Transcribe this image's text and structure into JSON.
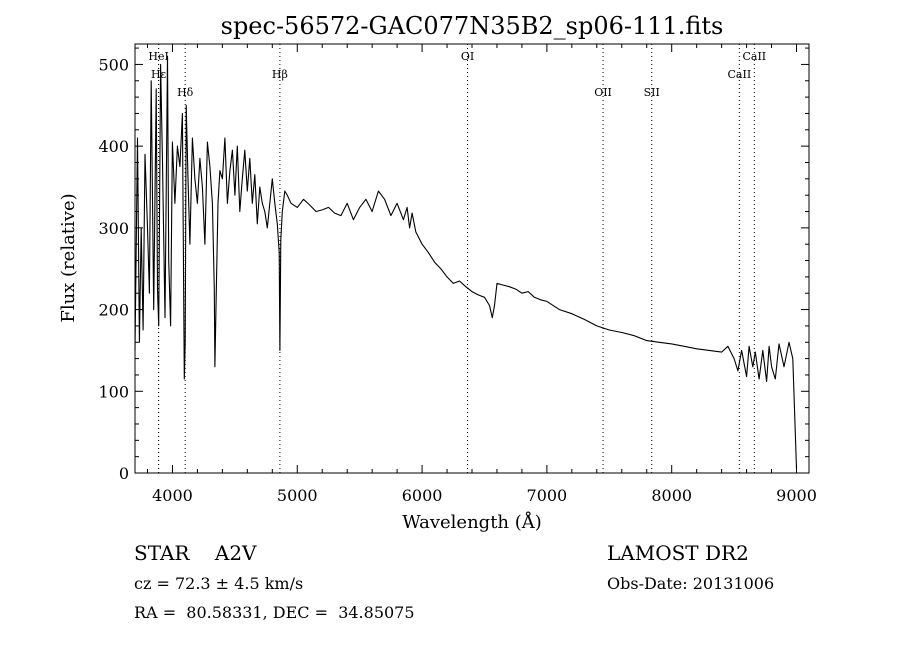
{
  "chart_data": {
    "type": "line",
    "title": "spec-56572-GAC077N35B2_sp06-111.fits",
    "xlabel": "Wavelength (Å)",
    "ylabel": "Flux (relative)",
    "xlim": [
      3700,
      9100
    ],
    "ylim": [
      0,
      525
    ],
    "xticks": [
      4000,
      5000,
      6000,
      7000,
      8000,
      9000
    ],
    "yticks": [
      0,
      100,
      200,
      300,
      400,
      500
    ],
    "grid": false,
    "line_color": "#000000",
    "spectral_lines": [
      {
        "label": "Hε",
        "x": 3889,
        "row": "low"
      },
      {
        "label": "HeI",
        "x": 3889,
        "row": "high"
      },
      {
        "label": "Hδ",
        "x": 4102,
        "row": "mid"
      },
      {
        "label": "Hβ",
        "x": 4861,
        "row": "low"
      },
      {
        "label": "OI",
        "x": 6364,
        "row": "high"
      },
      {
        "label": "OII",
        "x": 7450,
        "row": "mid"
      },
      {
        "label": "SII",
        "x": 7840,
        "row": "mid"
      },
      {
        "label": "CaII",
        "x": 8542,
        "row": "low"
      },
      {
        "label": "CaII",
        "x": 8662,
        "row": "high"
      }
    ],
    "series": [
      {
        "x": [
          3700,
          3720,
          3735,
          3750,
          3765,
          3780,
          3800,
          3815,
          3830,
          3850,
          3870,
          3880,
          3890,
          3905,
          3920,
          3940,
          3960,
          3970,
          3985,
          4000,
          4020,
          4040,
          4060,
          4080,
          4095,
          4102,
          4110,
          4125,
          4140,
          4160,
          4180,
          4200,
          4220,
          4240,
          4260,
          4280,
          4300,
          4320,
          4335,
          4340,
          4350,
          4365,
          4380,
          4400,
          4420,
          4440,
          4460,
          4480,
          4500,
          4520,
          4540,
          4560,
          4580,
          4600,
          4620,
          4640,
          4660,
          4680,
          4700,
          4720,
          4740,
          4760,
          4780,
          4800,
          4820,
          4840,
          4855,
          4861,
          4868,
          4880,
          4900,
          4920,
          4950,
          5000,
          5050,
          5100,
          5150,
          5200,
          5250,
          5300,
          5350,
          5400,
          5450,
          5500,
          5550,
          5600,
          5650,
          5700,
          5750,
          5800,
          5850,
          5880,
          5900,
          5920,
          5950,
          6000,
          6050,
          6100,
          6150,
          6200,
          6250,
          6300,
          6350,
          6400,
          6450,
          6500,
          6540,
          6563,
          6580,
          6600,
          6650,
          6700,
          6750,
          6800,
          6850,
          6900,
          6950,
          7000,
          7100,
          7200,
          7300,
          7400,
          7500,
          7600,
          7700,
          7800,
          7900,
          8000,
          8100,
          8200,
          8300,
          8400,
          8450,
          8500,
          8530,
          8560,
          8600,
          8620,
          8650,
          8670,
          8700,
          8730,
          8760,
          8780,
          8800,
          8830,
          8860,
          8900,
          8940,
          8970,
          9000
        ],
        "y": [
          150,
          410,
          160,
          300,
          175,
          390,
          300,
          220,
          480,
          200,
          470,
          225,
          180,
          500,
          380,
          190,
          510,
          260,
          180,
          405,
          330,
          400,
          375,
          440,
          115,
          160,
          450,
          360,
          280,
          410,
          360,
          330,
          385,
          350,
          280,
          405,
          375,
          330,
          225,
          130,
          210,
          330,
          370,
          360,
          410,
          330,
          370,
          395,
          340,
          400,
          320,
          360,
          395,
          345,
          385,
          330,
          365,
          305,
          350,
          330,
          320,
          300,
          330,
          360,
          330,
          305,
          270,
          150,
          285,
          320,
          345,
          340,
          330,
          325,
          335,
          328,
          320,
          322,
          325,
          318,
          315,
          330,
          310,
          325,
          335,
          320,
          345,
          335,
          315,
          330,
          310,
          325,
          300,
          318,
          295,
          280,
          270,
          258,
          250,
          240,
          232,
          235,
          228,
          222,
          218,
          215,
          205,
          190,
          205,
          232,
          230,
          228,
          225,
          220,
          222,
          215,
          212,
          210,
          200,
          195,
          188,
          180,
          175,
          172,
          168,
          162,
          160,
          158,
          155,
          152,
          150,
          148,
          155,
          140,
          125,
          150,
          118,
          155,
          130,
          148,
          115,
          150,
          112,
          155,
          130,
          115,
          158,
          130,
          160,
          140,
          5
        ]
      }
    ]
  },
  "info": {
    "object_type": "STAR",
    "subclass": "A2V",
    "cz": "cz = 72.3 ± 4.5 km/s",
    "survey": "LAMOST DR2",
    "obs_date": "Obs-Date: 20131006",
    "radec": "RA =  80.58331, DEC =  34.85075"
  }
}
